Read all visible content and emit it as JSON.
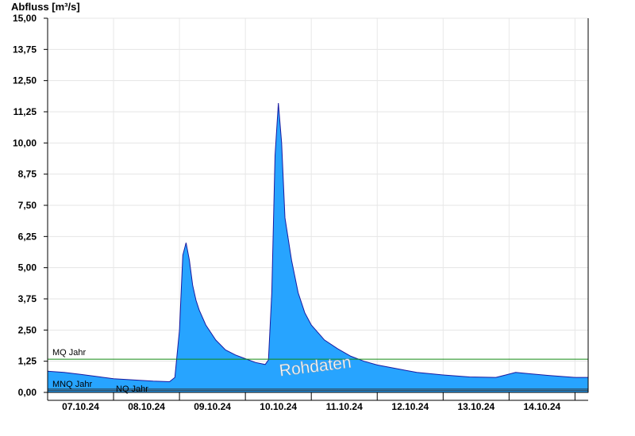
{
  "chart_data": {
    "type": "area",
    "ylabel": "Abfluss [m³/s]",
    "watermark": "Rohdaten",
    "ylim": [
      0,
      15
    ],
    "xlim": [
      0,
      8.2
    ],
    "yticks": [
      0,
      1.25,
      2.5,
      3.75,
      5,
      6.25,
      7.5,
      8.75,
      10,
      11.25,
      12.5,
      13.75,
      15
    ],
    "ytick_labels": [
      "0,00",
      "1,25",
      "2,50",
      "3,75",
      "5,00",
      "6,25",
      "7,50",
      "8,75",
      "10,00",
      "11,25",
      "12,50",
      "13,75",
      "15,00"
    ],
    "day_labels": [
      "07.10.24",
      "08.10.24",
      "09.10.24",
      "10.10.24",
      "11.10.24",
      "12.10.24",
      "13.10.24",
      "14.10.24"
    ],
    "grid": true,
    "fill_color": "#27a4ff",
    "line_color": "#1a1aa0",
    "reference_lines": [
      {
        "label": "MQ Jahr",
        "value": 1.33,
        "color": "#138a13"
      },
      {
        "label": "MNQ Jahr",
        "value": 0.13,
        "color": "#333333"
      },
      {
        "label": "NQ Jahr",
        "value": 0.07,
        "color": "#333333"
      }
    ],
    "series": [
      {
        "x": [
          0,
          0.25,
          0.5,
          0.8,
          1.0,
          1.3,
          1.6,
          1.85,
          1.93,
          2.0,
          2.05,
          2.1,
          2.15,
          2.2,
          2.25,
          2.3,
          2.4,
          2.55,
          2.7,
          2.85,
          3.0,
          3.15,
          3.3,
          3.35,
          3.4,
          3.45,
          3.5,
          3.55,
          3.6,
          3.7,
          3.8,
          3.9,
          4.0,
          4.2,
          4.4,
          4.6,
          4.8,
          5.0,
          5.3,
          5.6,
          6.0,
          6.4,
          6.8,
          6.95,
          7.1,
          7.3,
          7.6,
          8.0,
          8.2
        ],
        "y": [
          0.85,
          0.8,
          0.72,
          0.62,
          0.55,
          0.5,
          0.45,
          0.43,
          0.6,
          2.5,
          5.5,
          6.0,
          5.3,
          4.3,
          3.7,
          3.3,
          2.7,
          2.1,
          1.7,
          1.5,
          1.35,
          1.2,
          1.12,
          1.3,
          4.0,
          9.5,
          11.6,
          10.0,
          7.0,
          5.3,
          4.0,
          3.2,
          2.7,
          2.1,
          1.75,
          1.45,
          1.25,
          1.1,
          0.95,
          0.8,
          0.7,
          0.62,
          0.6,
          0.7,
          0.8,
          0.75,
          0.68,
          0.6,
          0.6
        ]
      }
    ]
  }
}
